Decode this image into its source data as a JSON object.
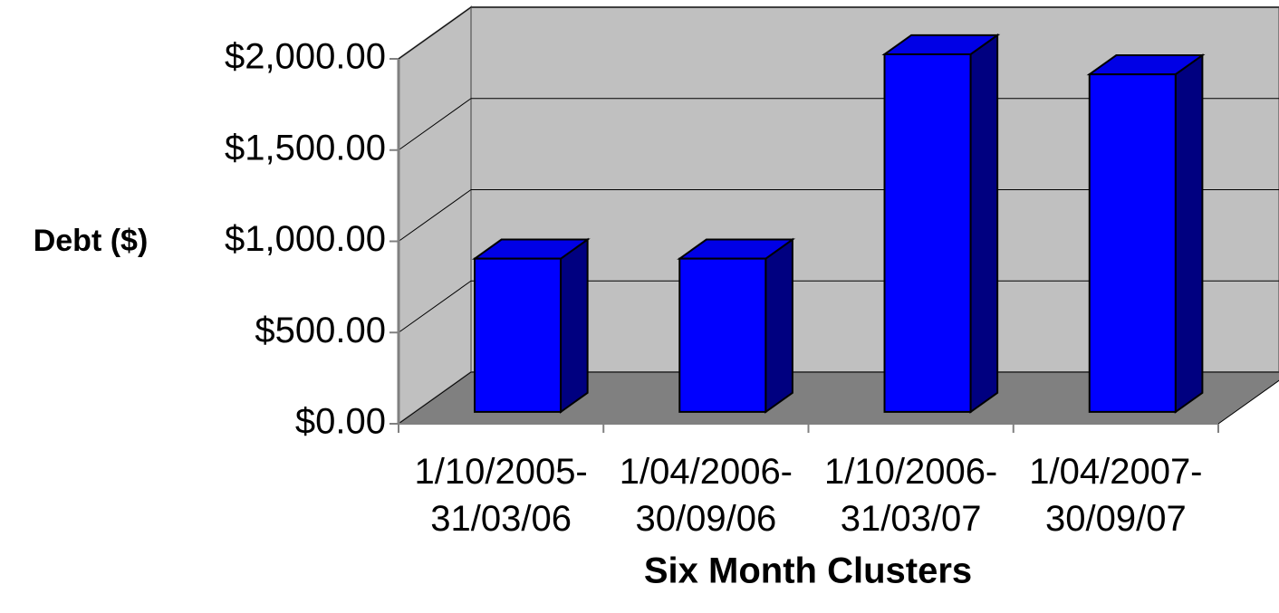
{
  "chart_data": {
    "type": "bar3d",
    "y_label": "Debt ($)",
    "x_label": "Six Month Clusters",
    "categories": [
      "1/10/2005-31/03/06",
      "1/04/2006-30/09/06",
      "1/10/2006-31/03/07",
      "1/04/2007-30/09/07"
    ],
    "values": [
      840,
      840,
      1960,
      1850
    ],
    "color": "#0000ff",
    "ylim": [
      0,
      2000
    ],
    "yticks": [
      {
        "value": 0,
        "label": "$0.00"
      },
      {
        "value": 500,
        "label": "$500.00"
      },
      {
        "value": 1000,
        "label": "$1,000.00"
      },
      {
        "value": 1500,
        "label": "$1,500.00"
      },
      {
        "value": 2000,
        "label": "$2,000.00"
      }
    ],
    "grid": true
  }
}
